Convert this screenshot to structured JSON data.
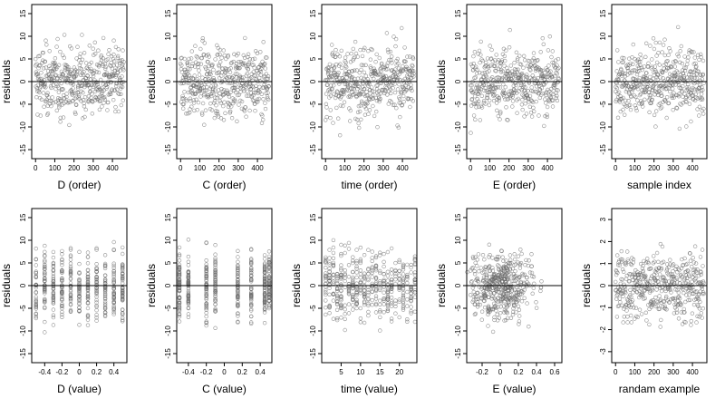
{
  "chart_data": [
    {
      "type": "scatter",
      "xlabel": "D (order)",
      "ylabel": "residuals",
      "xlim": [
        -20,
        475
      ],
      "ylim": [
        -17,
        17
      ],
      "xticks": [
        0,
        100,
        200,
        300,
        400
      ],
      "yticks": [
        -15,
        -10,
        -5,
        0,
        5,
        10,
        15
      ],
      "hline": 0,
      "pattern": "index",
      "n": 460,
      "spread": 5
    },
    {
      "type": "scatter",
      "xlabel": "C (order)",
      "ylabel": "residuals",
      "xlim": [
        -20,
        475
      ],
      "ylim": [
        -17,
        17
      ],
      "xticks": [
        0,
        100,
        200,
        300,
        400
      ],
      "yticks": [
        -15,
        -10,
        -5,
        0,
        5,
        10,
        15
      ],
      "hline": 0,
      "pattern": "index",
      "n": 460,
      "spread": 5
    },
    {
      "type": "scatter",
      "xlabel": "time (order)",
      "ylabel": "residuals",
      "xlim": [
        -20,
        475
      ],
      "ylim": [
        -17,
        17
      ],
      "xticks": [
        0,
        100,
        200,
        300,
        400
      ],
      "yticks": [
        -15,
        -10,
        -5,
        0,
        5,
        10,
        15
      ],
      "hline": 0,
      "pattern": "index",
      "n": 460,
      "spread": 5
    },
    {
      "type": "scatter",
      "xlabel": "E (order)",
      "ylabel": "residuals",
      "xlim": [
        -20,
        475
      ],
      "ylim": [
        -17,
        17
      ],
      "xticks": [
        0,
        100,
        200,
        300,
        400
      ],
      "yticks": [
        -15,
        -10,
        -5,
        0,
        5,
        10,
        15
      ],
      "hline": 0,
      "pattern": "index",
      "n": 460,
      "spread": 5
    },
    {
      "type": "scatter",
      "xlabel": "sample index",
      "ylabel": "residuals",
      "xlim": [
        -20,
        475
      ],
      "ylim": [
        -17,
        17
      ],
      "xticks": [
        0,
        100,
        200,
        300,
        400
      ],
      "yticks": [
        -15,
        -10,
        -5,
        0,
        5,
        10,
        15
      ],
      "hline": 0,
      "pattern": "index",
      "n": 460,
      "spread": 5
    },
    {
      "type": "scatter",
      "xlabel": "D (value)",
      "ylabel": "residuals",
      "xlim": [
        -0.55,
        0.55
      ],
      "ylim": [
        -17,
        17
      ],
      "xticks": [
        -0.4,
        -0.2,
        0,
        0.2,
        0.4
      ],
      "yticks": [
        -15,
        -10,
        -5,
        0,
        5,
        10,
        15
      ],
      "hline": 0,
      "pattern": "levels",
      "levels": [
        -0.5,
        -0.4,
        -0.3,
        -0.2,
        -0.1,
        0,
        0.1,
        0.2,
        0.3,
        0.4,
        0.5
      ],
      "n": 460,
      "spread": 5
    },
    {
      "type": "scatter",
      "xlabel": "C (value)",
      "ylabel": "residuals",
      "xlim": [
        -0.53,
        0.53
      ],
      "ylim": [
        -17,
        17
      ],
      "xticks": [
        -0.4,
        -0.2,
        0,
        0.2,
        0.4
      ],
      "yticks": [
        -15,
        -10,
        -5,
        0,
        5,
        10,
        15
      ],
      "hline": 0,
      "pattern": "levels",
      "levels": [
        -0.5,
        -0.4,
        -0.2,
        -0.1,
        0.15,
        0.3,
        0.45,
        0.5
      ],
      "n": 460,
      "spread": 5
    },
    {
      "type": "scatter",
      "xlabel": "time (value)",
      "ylabel": "residuals",
      "xlim": [
        0,
        24.5
      ],
      "ylim": [
        -17,
        17
      ],
      "xticks": [
        5,
        10,
        15,
        20
      ],
      "yticks": [
        -15,
        -10,
        -5,
        0,
        5,
        10,
        15
      ],
      "hline": 0,
      "pattern": "levels",
      "levels": [
        1,
        2,
        3,
        4,
        5,
        6,
        7,
        8,
        9,
        10,
        11,
        12,
        13,
        14,
        15,
        16,
        17,
        18,
        19,
        20,
        21,
        22,
        23,
        24
      ],
      "n": 460,
      "spread": 5
    },
    {
      "type": "scatter",
      "xlabel": "E (value)",
      "ylabel": "residuals",
      "xlim": [
        -0.37,
        0.68
      ],
      "ylim": [
        -17,
        17
      ],
      "xticks": [
        -0.2,
        0,
        0.2,
        0.4,
        0.6
      ],
      "yticks": [
        -15,
        -10,
        -5,
        0,
        5,
        10,
        15
      ],
      "hline": 0,
      "pattern": "continuous",
      "xmean": 0.02,
      "xsd": 0.17,
      "n": 460,
      "spread": 5
    },
    {
      "type": "scatter",
      "xlabel": "randam example",
      "ylabel": "residuals",
      "xlim": [
        -20,
        475
      ],
      "ylim": [
        -3.5,
        3.5
      ],
      "xticks": [
        0,
        100,
        200,
        300,
        400
      ],
      "yticks": [
        -3,
        -2,
        -1,
        0,
        1,
        2,
        3
      ],
      "hline": 0,
      "pattern": "index",
      "n": 460,
      "spread": 1
    }
  ]
}
